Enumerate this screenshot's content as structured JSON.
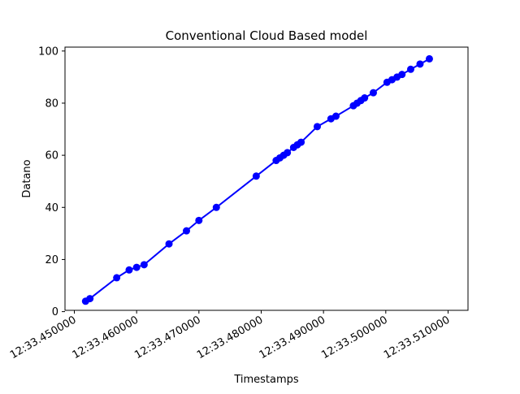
{
  "chart_data": {
    "type": "line",
    "title": "Conventional Cloud Based model",
    "xlabel": "Timestamps",
    "ylabel": "Datano",
    "x_tick_labels": [
      "12:33.450000",
      "12:33.460000",
      "12:33.470000",
      "12:33.480000",
      "12:33.490000",
      "12:33.500000",
      "12:33.510000"
    ],
    "x_tick_values": [
      33.45,
      33.46,
      33.47,
      33.48,
      33.49,
      33.5,
      33.51
    ],
    "y_ticks": [
      0,
      20,
      40,
      60,
      80,
      100
    ],
    "xlim": [
      33.4485,
      33.5132
    ],
    "ylim": [
      0.5,
      101.5
    ],
    "grid": false,
    "series": [
      {
        "color": "#0000ff",
        "marker": "circle",
        "x": [
          33.4518,
          33.4525,
          33.4568,
          33.4588,
          33.46,
          33.4612,
          33.4652,
          33.468,
          33.47,
          33.4728,
          33.4792,
          33.4824,
          33.483,
          33.4836,
          33.4842,
          33.4852,
          33.4858,
          33.4864,
          33.489,
          33.4912,
          33.492,
          33.4948,
          33.4954,
          33.496,
          33.4966,
          33.498,
          33.5002,
          33.501,
          33.5018,
          33.5026,
          33.504,
          33.5055,
          33.507
        ],
        "y": [
          4,
          5,
          13,
          16,
          17,
          18,
          26,
          31,
          35,
          40,
          52,
          58,
          59,
          60,
          61,
          63,
          64,
          65,
          71,
          74,
          75,
          79,
          80,
          81,
          82,
          84,
          88,
          89,
          90,
          91,
          93,
          95,
          97
        ]
      }
    ]
  }
}
